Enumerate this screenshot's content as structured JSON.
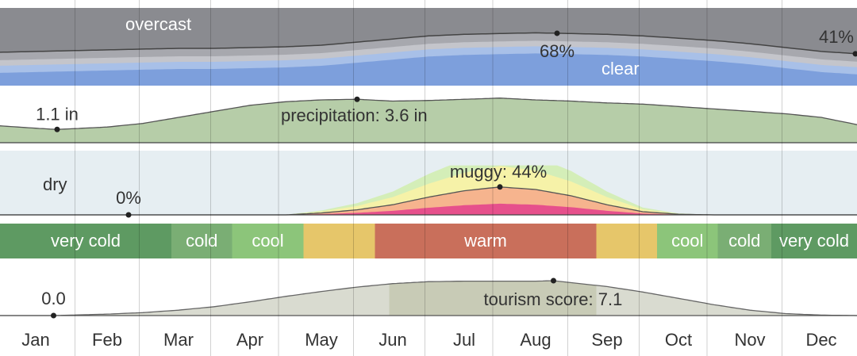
{
  "chart_data": {
    "type": "area",
    "months": [
      "Jan",
      "Feb",
      "Mar",
      "Apr",
      "May",
      "Jun",
      "Jul",
      "Aug",
      "Sep",
      "Oct",
      "Nov",
      "Dec"
    ],
    "panels": [
      {
        "id": "clouds",
        "labels": {
          "overcast": "overcast",
          "clear": "clear"
        },
        "series": {
          "name": "clear sky %",
          "x": [
            0,
            0.5,
            1,
            1.5,
            2,
            2.5,
            3,
            3.5,
            4,
            4.5,
            5,
            5.5,
            6,
            6.5,
            7,
            7.5,
            8,
            8.5,
            9,
            9.5,
            10,
            10.5,
            11,
            11.5,
            12
          ],
          "values": [
            43,
            44,
            45,
            46,
            47,
            48,
            48,
            49,
            50,
            52,
            56,
            60,
            64,
            66,
            67,
            68,
            67,
            66,
            64,
            61,
            58,
            54,
            49,
            44,
            41
          ]
        },
        "annotations": [
          {
            "text": "68%",
            "x": 7.8,
            "value": 68
          },
          {
            "text": "41%",
            "x": 12,
            "value": 41
          }
        ]
      },
      {
        "id": "precipitation",
        "unit": "in",
        "series": {
          "name": "precipitation",
          "x": [
            0,
            0.5,
            0.8,
            1.5,
            2,
            2.5,
            3,
            3.5,
            4,
            4.5,
            5,
            5.5,
            6,
            6.5,
            7,
            7.5,
            8,
            8.5,
            9,
            9.5,
            10,
            10.5,
            11,
            11.5,
            12
          ],
          "values": [
            1.4,
            1.2,
            1.1,
            1.3,
            1.6,
            2.1,
            2.6,
            3.1,
            3.4,
            3.55,
            3.6,
            3.45,
            3.5,
            3.6,
            3.7,
            3.55,
            3.45,
            3.3,
            3.2,
            3.0,
            2.8,
            2.6,
            2.4,
            2.1,
            1.5
          ]
        },
        "annotations": [
          {
            "text": "1.1 in",
            "x": 0.8,
            "value": 1.1
          },
          {
            "text": "precipitation: 3.6 in",
            "x": 5,
            "value": 3.6
          }
        ]
      },
      {
        "id": "humidity",
        "labels": {
          "dry": "dry"
        },
        "series": {
          "name": "muggy %",
          "x": [
            0,
            1,
            1.8,
            3,
            4,
            4.5,
            5,
            5.5,
            6,
            6.5,
            7,
            7.5,
            8,
            8.5,
            9,
            9.5,
            10,
            11,
            12
          ],
          "values": [
            0,
            0,
            0,
            0,
            0,
            3,
            8,
            16,
            28,
            38,
            44,
            40,
            30,
            16,
            5,
            1,
            0,
            0,
            0
          ]
        },
        "annotations": [
          {
            "text": "0%",
            "x": 1.8,
            "value": 0
          },
          {
            "text": "muggy: 44%",
            "x": 7,
            "value": 44
          }
        ]
      },
      {
        "id": "temperature",
        "segments": [
          {
            "label": "very cold",
            "from": 0,
            "to": 2.4,
            "color": "#5e9a62"
          },
          {
            "label": "cold",
            "from": 2.4,
            "to": 3.25,
            "color": "#7aae74"
          },
          {
            "label": "cool",
            "from": 3.25,
            "to": 4.25,
            "color": "#8cc57a"
          },
          {
            "label": "",
            "from": 4.25,
            "to": 5.25,
            "color": "#e6c66a"
          },
          {
            "label": "warm",
            "from": 5.25,
            "to": 8.35,
            "color": "#c96f5b"
          },
          {
            "label": "",
            "from": 8.35,
            "to": 9.2,
            "color": "#e6c66a"
          },
          {
            "label": "cool",
            "from": 9.2,
            "to": 10.05,
            "color": "#8cc57a"
          },
          {
            "label": "cold",
            "from": 10.05,
            "to": 10.8,
            "color": "#7aae74"
          },
          {
            "label": "very cold",
            "from": 10.8,
            "to": 12,
            "color": "#5e9a62"
          }
        ]
      },
      {
        "id": "tourism",
        "series": {
          "name": "tourism score",
          "x": [
            0,
            0.75,
            1,
            1.5,
            2,
            2.5,
            3,
            3.5,
            4,
            4.5,
            5,
            5.5,
            6,
            6.5,
            7,
            7.5,
            7.75,
            8,
            8.5,
            9,
            9.5,
            10,
            10.5,
            11,
            11.5,
            12
          ],
          "values": [
            0,
            0,
            0.1,
            0.3,
            0.6,
            1.1,
            1.8,
            2.8,
            3.9,
            4.9,
            5.8,
            6.5,
            6.9,
            7.0,
            7.0,
            7.0,
            7.1,
            6.7,
            5.9,
            4.8,
            3.5,
            2.2,
            1.1,
            0.4,
            0.1,
            0
          ]
        },
        "highlight": {
          "from": 5.45,
          "to": 8.35
        },
        "annotations": [
          {
            "text": "0.0",
            "x": 0.75,
            "value": 0
          },
          {
            "text": "tourism score: 7.1",
            "x": 7.75,
            "value": 7.1
          }
        ]
      }
    ]
  }
}
